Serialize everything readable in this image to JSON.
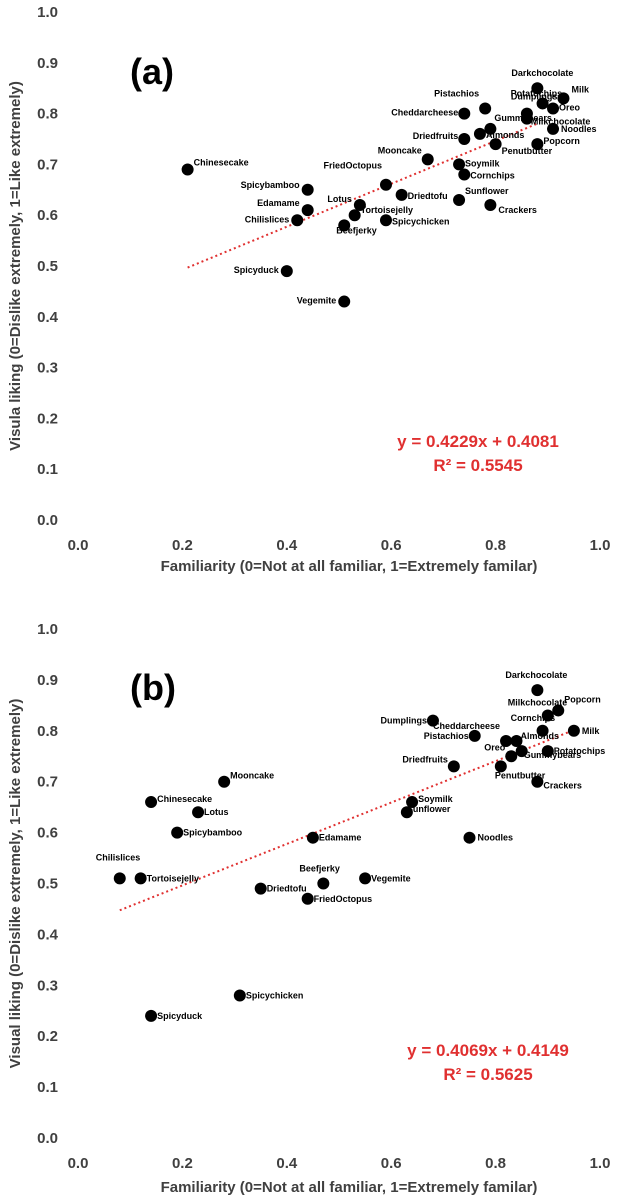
{
  "chart_data": [
    {
      "type": "scatter",
      "panel": "(a)",
      "xlabel": "Familiarity (0=Not at all familiar, 1=Extremely familar)",
      "ylabel": "Visula liking (0=Dislike extremely, 1=Like extremely)",
      "xlim": [
        0.0,
        1.0
      ],
      "ylim": [
        0.0,
        1.0
      ],
      "xticks": [
        "0.0",
        "0.2",
        "0.4",
        "0.6",
        "0.8",
        "1.0"
      ],
      "yticks": [
        "0.0",
        "0.1",
        "0.2",
        "0.3",
        "0.4",
        "0.5",
        "0.6",
        "0.7",
        "0.8",
        "0.9",
        "1.0"
      ],
      "equation": "y = 0.4229x + 0.4081",
      "r_squared": "R² = 0.5545",
      "trendline": {
        "slope": 0.4229,
        "intercept": 0.4081,
        "x_range": [
          0.21,
          0.88
        ],
        "color": "#e03030"
      },
      "point_color": "#000000",
      "points": [
        {
          "label": "Chinesecake",
          "x": 0.21,
          "y": 0.69
        },
        {
          "label": "Spicybamboo",
          "x": 0.44,
          "y": 0.65
        },
        {
          "label": "Edamame",
          "x": 0.44,
          "y": 0.61
        },
        {
          "label": "Chilislices",
          "x": 0.42,
          "y": 0.59
        },
        {
          "label": "Spicyduck",
          "x": 0.4,
          "y": 0.49
        },
        {
          "label": "Vegemite",
          "x": 0.51,
          "y": 0.43
        },
        {
          "label": "FriedOctopus",
          "x": 0.59,
          "y": 0.66
        },
        {
          "label": "Lotus",
          "x": 0.54,
          "y": 0.62
        },
        {
          "label": "Tortoisejelly",
          "x": 0.53,
          "y": 0.6
        },
        {
          "label": "Beefjerky",
          "x": 0.51,
          "y": 0.58
        },
        {
          "label": "Spicychicken",
          "x": 0.59,
          "y": 0.59
        },
        {
          "label": "Mooncake",
          "x": 0.67,
          "y": 0.71
        },
        {
          "label": "Driedtofu",
          "x": 0.62,
          "y": 0.64
        },
        {
          "label": "Soymilk",
          "x": 0.73,
          "y": 0.7
        },
        {
          "label": "Cornchips",
          "x": 0.74,
          "y": 0.68
        },
        {
          "label": "Sunflower",
          "x": 0.73,
          "y": 0.63
        },
        {
          "label": "Crackers",
          "x": 0.79,
          "y": 0.62
        },
        {
          "label": "Driedfruits",
          "x": 0.74,
          "y": 0.75
        },
        {
          "label": "Cheddarcheese",
          "x": 0.74,
          "y": 0.8
        },
        {
          "label": "Pistachios",
          "x": 0.78,
          "y": 0.81
        },
        {
          "label": "Almonds",
          "x": 0.77,
          "y": 0.76
        },
        {
          "label": "Gummybears",
          "x": 0.79,
          "y": 0.77
        },
        {
          "label": "Penutbutter",
          "x": 0.8,
          "y": 0.74
        },
        {
          "label": "Dumplings",
          "x": 0.86,
          "y": 0.8
        },
        {
          "label": "Potatochips",
          "x": 0.89,
          "y": 0.82
        },
        {
          "label": "Darkchocolate",
          "x": 0.88,
          "y": 0.85
        },
        {
          "label": "Milk",
          "x": 0.93,
          "y": 0.83
        },
        {
          "label": "Oreo",
          "x": 0.91,
          "y": 0.81
        },
        {
          "label": "Milkchocolate",
          "x": 0.86,
          "y": 0.79
        },
        {
          "label": "Noodles",
          "x": 0.91,
          "y": 0.77
        },
        {
          "label": "Popcorn",
          "x": 0.88,
          "y": 0.74
        }
      ]
    },
    {
      "type": "scatter",
      "panel": "(b)",
      "xlabel": "Familiarity (0=Not at all familiar, 1=Extremely familar)",
      "ylabel": "Visual liking (0=Dislike extremely, 1=Like extremely)",
      "xlim": [
        0.0,
        1.0
      ],
      "ylim": [
        0.0,
        1.0
      ],
      "xticks": [
        "0.0",
        "0.2",
        "0.4",
        "0.6",
        "0.8",
        "1.0"
      ],
      "yticks": [
        "0.0",
        "0.1",
        "0.2",
        "0.3",
        "0.4",
        "0.5",
        "0.6",
        "0.7",
        "0.8",
        "0.9",
        "1.0"
      ],
      "equation": "y = 0.4069x + 0.4149",
      "r_squared": "R² = 0.5625",
      "trendline": {
        "slope": 0.4069,
        "intercept": 0.4149,
        "x_range": [
          0.08,
          0.95
        ],
        "color": "#e03030"
      },
      "point_color": "#000000",
      "points": [
        {
          "label": "Chilislices",
          "x": 0.08,
          "y": 0.51
        },
        {
          "label": "Tortoisejelly",
          "x": 0.12,
          "y": 0.51
        },
        {
          "label": "Chinesecake",
          "x": 0.14,
          "y": 0.66
        },
        {
          "label": "Spicybamboo",
          "x": 0.19,
          "y": 0.6
        },
        {
          "label": "Lotus",
          "x": 0.23,
          "y": 0.64
        },
        {
          "label": "Mooncake",
          "x": 0.28,
          "y": 0.7
        },
        {
          "label": "Spicyduck",
          "x": 0.14,
          "y": 0.24
        },
        {
          "label": "Spicychicken",
          "x": 0.31,
          "y": 0.28
        },
        {
          "label": "Driedtofu",
          "x": 0.35,
          "y": 0.49
        },
        {
          "label": "Edamame",
          "x": 0.45,
          "y": 0.59
        },
        {
          "label": "Beefjerky",
          "x": 0.47,
          "y": 0.5
        },
        {
          "label": "FriedOctopus",
          "x": 0.44,
          "y": 0.47
        },
        {
          "label": "Vegemite",
          "x": 0.55,
          "y": 0.51
        },
        {
          "label": "Soymilk",
          "x": 0.64,
          "y": 0.66
        },
        {
          "label": "Sunflower",
          "x": 0.63,
          "y": 0.64
        },
        {
          "label": "Dumplings",
          "x": 0.68,
          "y": 0.82
        },
        {
          "label": "Pistachios",
          "x": 0.76,
          "y": 0.79
        },
        {
          "label": "Driedfruits",
          "x": 0.72,
          "y": 0.73
        },
        {
          "label": "Noodles",
          "x": 0.75,
          "y": 0.59
        },
        {
          "label": "Cheddarcheese",
          "x": 0.82,
          "y": 0.78
        },
        {
          "label": "Almonds",
          "x": 0.84,
          "y": 0.78
        },
        {
          "label": "Oreo",
          "x": 0.83,
          "y": 0.75
        },
        {
          "label": "Gummybears",
          "x": 0.85,
          "y": 0.76
        },
        {
          "label": "Penutbutter",
          "x": 0.81,
          "y": 0.73
        },
        {
          "label": "Darkchocolate",
          "x": 0.88,
          "y": 0.88
        },
        {
          "label": "Milkchocolate",
          "x": 0.9,
          "y": 0.83
        },
        {
          "label": "Popcorn",
          "x": 0.92,
          "y": 0.84
        },
        {
          "label": "Cornchips",
          "x": 0.89,
          "y": 0.8
        },
        {
          "label": "Milk",
          "x": 0.95,
          "y": 0.8
        },
        {
          "label": "Potatochips",
          "x": 0.9,
          "y": 0.76
        },
        {
          "label": "Crackers",
          "x": 0.88,
          "y": 0.7
        }
      ]
    }
  ]
}
